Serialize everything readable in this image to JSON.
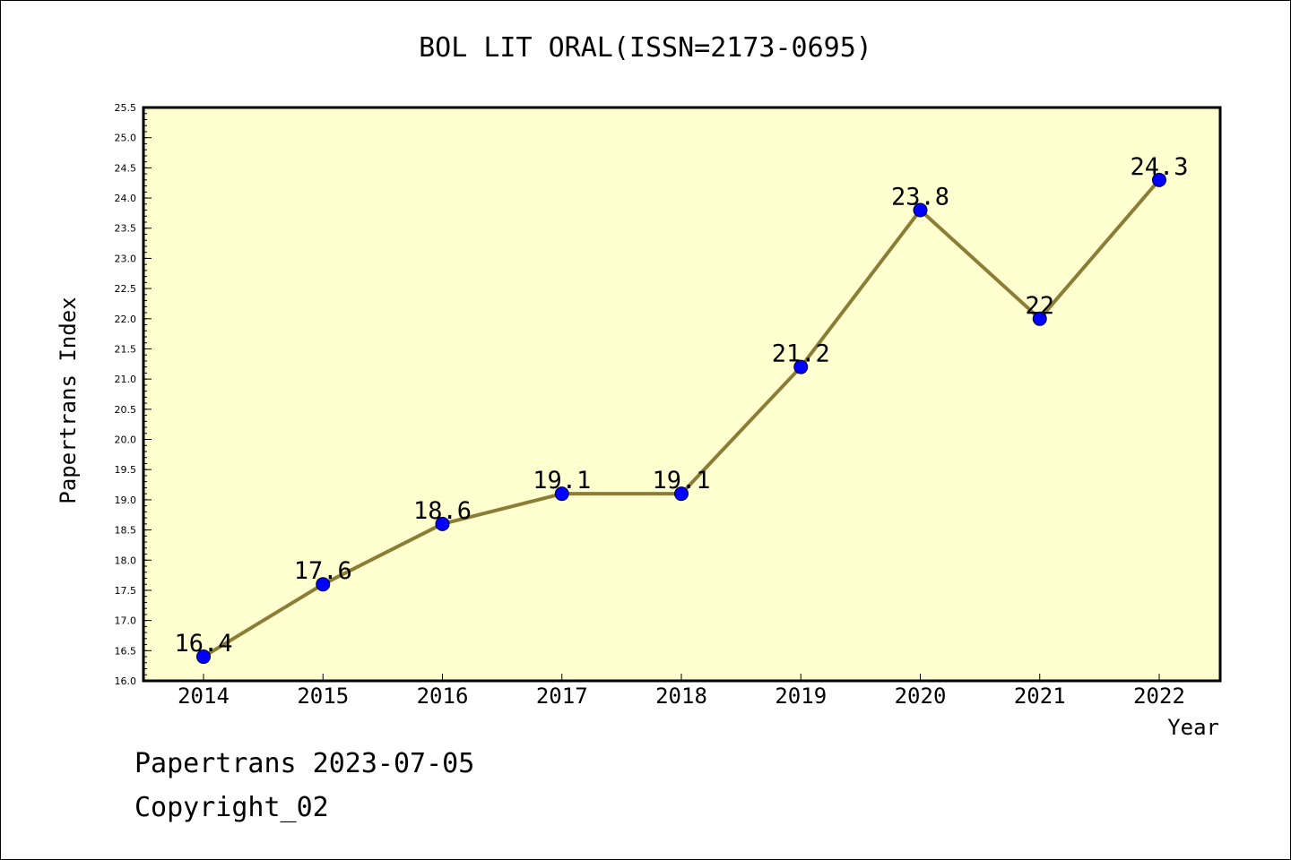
{
  "title": "BOL LIT ORAL(ISSN=2173-0695)",
  "footer": {
    "line1": "Papertrans 2023-07-05",
    "line2": "Copyright_02"
  },
  "colors": {
    "plot_background": "#ffffd0",
    "line": "#8b7d35",
    "marker": "#0000ff",
    "axis": "#000000"
  },
  "chart_data": {
    "type": "line",
    "title": "BOL LIT ORAL(ISSN=2173-0695)",
    "xlabel": "Year",
    "ylabel": "Papertrans Index",
    "categories": [
      "2014",
      "2015",
      "2016",
      "2017",
      "2018",
      "2019",
      "2020",
      "2021",
      "2022"
    ],
    "series": [
      {
        "values": [
          16.4,
          17.6,
          18.6,
          19.1,
          19.1,
          21.2,
          23.8,
          22,
          24.3
        ],
        "labels": [
          "16.4",
          "17.6",
          "18.6",
          "19.1",
          "19.1",
          "21.2",
          "23.8",
          "22",
          "24.3"
        ]
      }
    ],
    "ylim": [
      16.0,
      25.5
    ],
    "yticks": [
      "16.0",
      "16.5",
      "17.0",
      "17.5",
      "18.0",
      "18.5",
      "19.0",
      "19.5",
      "20.0",
      "20.5",
      "21.0",
      "21.5",
      "22.0",
      "22.5",
      "23.0",
      "23.5",
      "24.0",
      "24.5",
      "25.0",
      "25.5"
    ],
    "grid": false,
    "legend": "none"
  }
}
